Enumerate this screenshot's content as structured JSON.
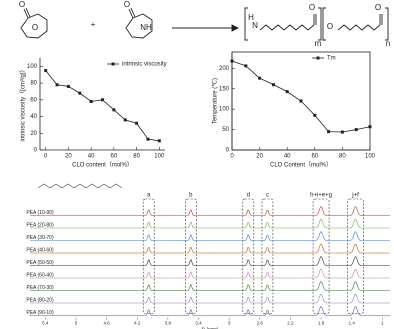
{
  "scheme": {
    "atoms": [
      "O",
      "O",
      "O",
      "NH",
      "H",
      "N",
      "O",
      "O",
      "O"
    ],
    "plus": "+",
    "subscripts": [
      "m",
      "n"
    ]
  },
  "chart_data": [
    {
      "type": "line",
      "x": [
        0,
        10,
        20,
        30,
        40,
        50,
        60,
        70,
        80,
        90,
        100
      ],
      "series": [
        {
          "name": "intrinsic viscosity",
          "color": "#222222",
          "values": [
            95,
            78,
            76,
            68,
            58,
            60,
            48,
            36,
            32,
            13,
            11
          ]
        }
      ],
      "xlim": [
        -5,
        105
      ],
      "xticks": [
        0,
        20,
        40,
        60,
        80,
        100
      ],
      "ylim": [
        0,
        110
      ],
      "yticks": [
        0,
        20,
        40,
        60,
        80,
        100
      ],
      "x_label": "CLO content（mol%）",
      "y_label": "intrinsic viscosity（[cm³/g]）",
      "legend": "upper right",
      "frame": false
    },
    {
      "type": "line",
      "x": [
        0,
        10,
        20,
        30,
        40,
        50,
        60,
        70,
        80,
        90,
        100
      ],
      "series": [
        {
          "name": "Tm",
          "color": "#222222",
          "values": [
            218,
            206,
            176,
            160,
            143,
            120,
            85,
            45,
            44,
            50,
            57
          ]
        }
      ],
      "xlim": [
        0,
        100
      ],
      "xticks": [
        0,
        20,
        40,
        60,
        80,
        100
      ],
      "ylim": [
        0,
        240
      ],
      "yticks": [
        0,
        50,
        100,
        150,
        200
      ],
      "x_label": "CLO Content（mol%）",
      "y_label": "Temperature (℃)",
      "legend": "upper right",
      "frame": true
    }
  ],
  "nmr": {
    "samples": [
      "PEA (10-90)",
      "PEA (20-80)",
      "PEA (30-70)",
      "PEA (40-60)",
      "PEA (50-50)",
      "PEA (60-40)",
      "PEA (70-30)",
      "PEA (80-20)",
      "PEA (90-10)"
    ],
    "colors": [
      "#d0302a",
      "#6aa84f",
      "#3c78d8",
      "#b45f06",
      "#2a2a2a",
      "#c27ba0",
      "#38761d",
      "#8e7cc3",
      "#674ea7"
    ],
    "peaks": [
      {
        "label": "a",
        "ppm": 4.05
      },
      {
        "label": "b",
        "ppm": 3.5
      },
      {
        "label": "d",
        "ppm": 2.75
      },
      {
        "label": "c",
        "ppm": 2.5
      },
      {
        "label": "h+i+e+g",
        "ppm": 1.8
      },
      {
        "label": "j+f",
        "ppm": 1.35
      }
    ],
    "xlim": [
      5.6,
      0.9
    ],
    "xticks": [
      5.4,
      5.0,
      4.6,
      4.2,
      3.8,
      3.4,
      3.0,
      2.6,
      2.2,
      1.8,
      1.4,
      1.0
    ],
    "x_label": "f1 (ppm)"
  }
}
